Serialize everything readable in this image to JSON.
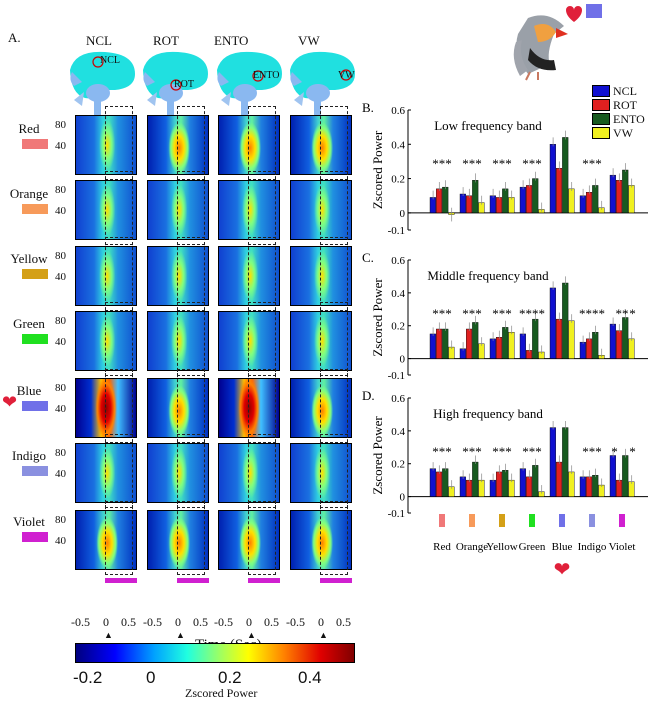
{
  "figure_label_a": "A.",
  "regions": [
    "NCL",
    "ROT",
    "ENTO",
    "VW"
  ],
  "brain_labels": [
    "NCL",
    "ROT",
    "ENTO",
    "VW"
  ],
  "colors": [
    {
      "name": "Red",
      "hex": "#f07878"
    },
    {
      "name": "Orange",
      "hex": "#f79a5a"
    },
    {
      "name": "Yellow",
      "hex": "#d4a017"
    },
    {
      "name": "Green",
      "hex": "#20e020"
    },
    {
      "name": "Blue",
      "hex": "#7070e8"
    },
    {
      "name": "Indigo",
      "hex": "#8a90e0"
    },
    {
      "name": "Violet",
      "hex": "#d020d0"
    }
  ],
  "heatmap_yticks": [
    "80",
    "40"
  ],
  "time_ticks": [
    "-0.5",
    "0",
    "0.5"
  ],
  "time_axis_label": "Time (Sec)",
  "colorbar": {
    "ticks": [
      "-0.2",
      "0",
      "0.2",
      "0.4"
    ],
    "label": "Zscored Power",
    "range": [
      -0.2,
      0.5
    ]
  },
  "legend": [
    "NCL",
    "ROT",
    "ENTO",
    "VW"
  ],
  "series_colors": {
    "NCL": "#1010d0",
    "ROT": "#e02020",
    "ENTO": "#185a20",
    "VW": "#f0f020"
  },
  "significance": {
    "B": [
      "***",
      "***",
      "***",
      "***",
      "",
      "***",
      ""
    ],
    "C": [
      "***",
      "***",
      "***",
      "****",
      "",
      "****",
      "**",
      "*"
    ],
    "D": [
      "***",
      "***",
      "***",
      "***",
      "",
      "***",
      "*",
      "*"
    ]
  },
  "chart_data": [
    {
      "type": "bar",
      "panel": "B.",
      "title": "Low frequency band",
      "ylabel": "Zscored Power",
      "ylim": [
        -0.1,
        0.6
      ],
      "yticks": [
        "0.6",
        "0.4",
        "0.2",
        "0",
        "-0.1"
      ],
      "categories": [
        "Red",
        "Orange",
        "Yellow",
        "Green",
        "Blue",
        "Indigo",
        "Violet"
      ],
      "series": [
        {
          "name": "NCL",
          "values": [
            0.09,
            0.11,
            0.1,
            0.15,
            0.4,
            0.1,
            0.22
          ]
        },
        {
          "name": "ROT",
          "values": [
            0.14,
            0.1,
            0.09,
            0.16,
            0.26,
            0.12,
            0.19
          ]
        },
        {
          "name": "ENTO",
          "values": [
            0.15,
            0.19,
            0.14,
            0.2,
            0.44,
            0.16,
            0.25
          ]
        },
        {
          "name": "VW",
          "values": [
            -0.01,
            0.06,
            0.09,
            0.02,
            0.14,
            0.03,
            0.16
          ]
        }
      ]
    },
    {
      "type": "bar",
      "panel": "C.",
      "title": "Middle frequency band",
      "ylabel": "Zscored Power",
      "ylim": [
        -0.1,
        0.6
      ],
      "yticks": [
        "0.6",
        "0.4",
        "0.2",
        "0",
        "-0.1"
      ],
      "categories": [
        "Red",
        "Orange",
        "Yellow",
        "Green",
        "Blue",
        "Indigo",
        "Violet"
      ],
      "series": [
        {
          "name": "NCL",
          "values": [
            0.15,
            0.06,
            0.12,
            0.15,
            0.43,
            0.1,
            0.21
          ]
        },
        {
          "name": "ROT",
          "values": [
            0.18,
            0.18,
            0.13,
            0.05,
            0.24,
            0.12,
            0.17
          ]
        },
        {
          "name": "ENTO",
          "values": [
            0.18,
            0.22,
            0.19,
            0.24,
            0.46,
            0.16,
            0.25
          ]
        },
        {
          "name": "VW",
          "values": [
            0.07,
            0.09,
            0.16,
            0.04,
            0.23,
            0.02,
            0.12
          ]
        }
      ]
    },
    {
      "type": "bar",
      "panel": "D.",
      "title": "High frequency band",
      "ylabel": "Zscored Power",
      "ylim": [
        -0.1,
        0.6
      ],
      "yticks": [
        "0.6",
        "0.4",
        "0.2",
        "0",
        "-0.1"
      ],
      "categories": [
        "Red",
        "Orange",
        "Yellow",
        "Green",
        "Blue",
        "Indigo",
        "Violet"
      ],
      "series": [
        {
          "name": "NCL",
          "values": [
            0.17,
            0.12,
            0.1,
            0.17,
            0.42,
            0.12,
            0.25
          ]
        },
        {
          "name": "ROT",
          "values": [
            0.15,
            0.1,
            0.15,
            0.12,
            0.21,
            0.12,
            0.1
          ]
        },
        {
          "name": "ENTO",
          "values": [
            0.17,
            0.21,
            0.16,
            0.19,
            0.42,
            0.13,
            0.25
          ]
        },
        {
          "name": "VW",
          "values": [
            0.06,
            0.1,
            0.1,
            0.03,
            0.15,
            0.07,
            0.09
          ]
        }
      ]
    }
  ]
}
